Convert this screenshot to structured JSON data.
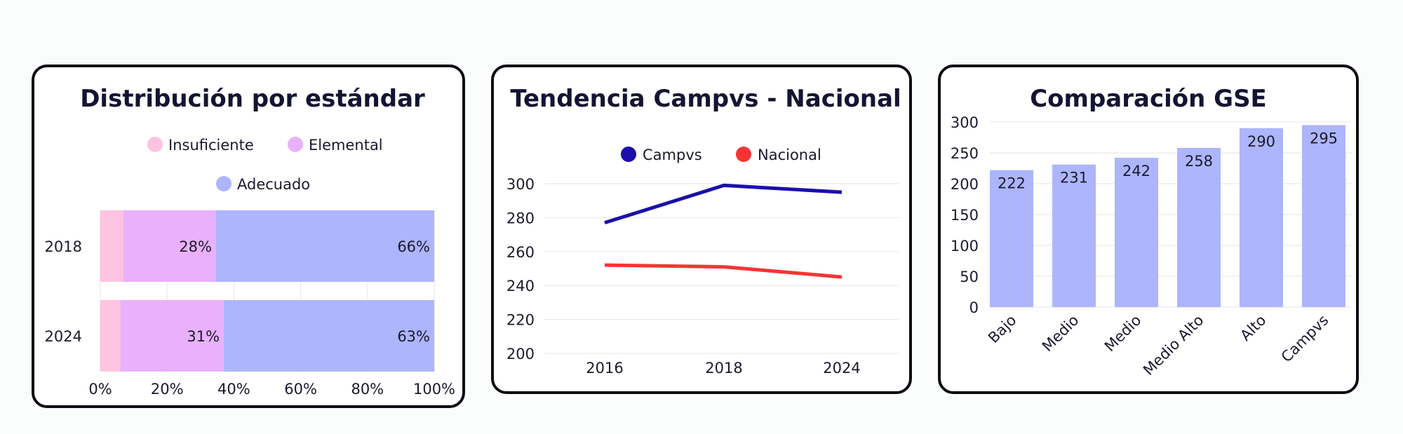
{
  "chart_data": [
    {
      "type": "bar",
      "orientation": "horizontal",
      "stacked": "percent",
      "title": "Distribución por estándar",
      "categories": [
        "2018",
        "2024"
      ],
      "series": [
        {
          "name": "Insuficiente",
          "values": [
            7,
            6
          ],
          "color": "#fec3e1"
        },
        {
          "name": "Elemental",
          "values": [
            28,
            31
          ],
          "color": "#e9b1fb"
        },
        {
          "name": "Adecuado",
          "values": [
            66,
            63
          ],
          "color": "#adb5fc"
        }
      ],
      "data_labels": {
        "Elemental": [
          "28%",
          "31%"
        ],
        "Adecuado": [
          "66%",
          "63%"
        ]
      },
      "x_ticks": [
        "0%",
        "20%",
        "40%",
        "60%",
        "80%",
        "100%"
      ],
      "xlim": [
        0,
        100
      ],
      "legend_position": "top",
      "grid": true
    },
    {
      "type": "line",
      "title": "Tendencia Campvs - Nacional",
      "x": [
        "2016",
        "2018",
        "2024"
      ],
      "series": [
        {
          "name": "Campvs",
          "values": [
            277,
            299,
            295
          ],
          "color": "#1a0fa8"
        },
        {
          "name": "Nacional",
          "values": [
            252,
            251,
            245
          ],
          "color": "#f53535"
        }
      ],
      "y_ticks": [
        "200",
        "220",
        "240",
        "260",
        "280",
        "300"
      ],
      "ylim": [
        200,
        300
      ],
      "legend_position": "top",
      "grid": true
    },
    {
      "type": "bar",
      "title": "Comparación GSE",
      "categories": [
        "Bajo",
        "Medio",
        "Medio",
        "Medio Alto",
        "Alto",
        "Campvs"
      ],
      "values": [
        222,
        231,
        242,
        258,
        290,
        295
      ],
      "labels": [
        "222",
        "231",
        "242",
        "258",
        "290",
        "295"
      ],
      "color": "#adb5fc",
      "y_ticks": [
        "0",
        "50",
        "100",
        "150",
        "200",
        "250",
        "300"
      ],
      "ylim": [
        0,
        300
      ],
      "grid": true
    }
  ]
}
